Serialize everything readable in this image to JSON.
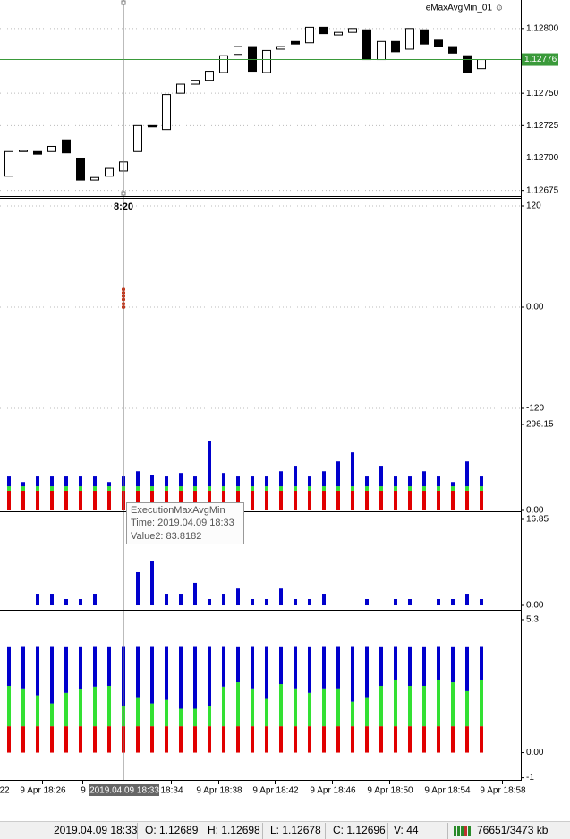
{
  "indicator_label": "eMaxAvgMin_01 ☺",
  "price_panel": {
    "ylim": [
      1.12672,
      1.12822
    ],
    "yticks": [
      {
        "value": 1.128,
        "label": "1.12800"
      },
      {
        "value": 1.1275,
        "label": "1.12750"
      },
      {
        "value": 1.12725,
        "label": "1.12725"
      },
      {
        "value": 1.127,
        "label": "1.12700"
      },
      {
        "value": 1.12675,
        "label": "1.12675"
      }
    ],
    "current_price": {
      "value": 1.12776,
      "label": "1.12776"
    },
    "open": [
      1.12686,
      1.12705,
      1.12705,
      1.12705,
      1.12714,
      1.127,
      1.12683,
      1.12686,
      1.1269,
      1.12705,
      1.12725,
      1.12722,
      1.1275,
      1.12757,
      1.1276,
      1.12766,
      1.1278,
      1.12786,
      1.12766,
      1.12784,
      1.1279,
      1.12789,
      1.12801,
      1.12795,
      1.12797,
      1.12799,
      1.12776,
      1.1279,
      1.12784,
      1.12799,
      1.12791,
      1.12786,
      1.12779,
      1.12769
    ],
    "close": [
      1.12705,
      1.12706,
      1.12703,
      1.12709,
      1.12704,
      1.12683,
      1.12685,
      1.12692,
      1.12697,
      1.12725,
      1.12724,
      1.12749,
      1.12757,
      1.1276,
      1.12767,
      1.12779,
      1.12786,
      1.12767,
      1.12783,
      1.12786,
      1.12788,
      1.12801,
      1.12796,
      1.12797,
      1.128,
      1.12776,
      1.1279,
      1.12782,
      1.128,
      1.12788,
      1.12786,
      1.12781,
      1.12766,
      1.12776
    ]
  },
  "panel2": {
    "ylim": [
      -126.4,
      128.5
    ],
    "yticks": [
      120,
      {
        "value": 0,
        "label": "0.00"
      },
      -120
    ],
    "crosshair_label": "8:20",
    "dot_index": 8,
    "dot_color": "#cc2200",
    "dots": [
      21,
      17,
      13,
      9,
      4,
      0
    ]
  },
  "panel3": {
    "ylim": [
      0,
      323.9
    ],
    "yticks": [
      296.15,
      {
        "value": 0,
        "label": "0.00"
      }
    ],
    "series": [
      {
        "color": "#e00000",
        "values": [
          68,
          68,
          68,
          68,
          68,
          68,
          68,
          68,
          68,
          68,
          68,
          68,
          68,
          68,
          68,
          68,
          68,
          68,
          68,
          68,
          68,
          68,
          68,
          68,
          68,
          68,
          68,
          68,
          68,
          68,
          68,
          68,
          68,
          68
        ]
      },
      {
        "color": "#33e033",
        "values": [
          15,
          15,
          15,
          15,
          15,
          15,
          15,
          15,
          15,
          15,
          15,
          15,
          15,
          15,
          15,
          15,
          15,
          15,
          15,
          15,
          15,
          15,
          15,
          15,
          15,
          15,
          15,
          15,
          15,
          15,
          15,
          15,
          15,
          15
        ]
      },
      {
        "color": "#0000cc",
        "values": [
          34,
          15,
          34,
          34,
          34,
          34,
          34,
          15,
          34,
          52,
          40,
          34,
          46,
          34,
          157,
          46,
          34,
          34,
          34,
          52,
          71,
          34,
          52,
          86,
          117,
          34,
          71,
          34,
          34,
          52,
          34,
          15,
          86,
          34
        ]
      }
    ]
  },
  "panel4": {
    "ylim": [
      -0.7,
      18.08
    ],
    "yticks": [
      16.85,
      {
        "value": 0,
        "label": "0.00"
      }
    ],
    "series": [
      {
        "color": "#0000cc",
        "values": [
          0,
          0,
          2.28,
          2.28,
          1.23,
          1.23,
          2.28,
          0,
          0,
          6.5,
          8.6,
          2.28,
          2.28,
          4.4,
          1.23,
          2.28,
          3.3,
          1.23,
          1.23,
          3.3,
          1.23,
          1.23,
          2.28,
          0,
          0,
          1.23,
          0,
          1.23,
          1.23,
          0,
          1.23,
          1.23,
          2.28,
          1.23
        ]
      }
    ]
  },
  "panel5": {
    "ylim": [
      -1.05,
      5.62
    ],
    "yticks": [
      5.3,
      {
        "value": 0,
        "label": "0.00"
      },
      -1
    ],
    "series": [
      {
        "color": "#e00000",
        "values": [
          1.05,
          1.05,
          1.05,
          1.05,
          1.05,
          1.05,
          1.05,
          1.05,
          1.05,
          1.05,
          1.05,
          1.05,
          1.05,
          1.05,
          1.05,
          1.05,
          1.05,
          1.05,
          1.05,
          1.05,
          1.05,
          1.05,
          1.05,
          1.05,
          1.05,
          1.05,
          1.05,
          1.05,
          1.05,
          1.05,
          1.05,
          1.05,
          1.05,
          1.05
        ]
      },
      {
        "color": "#33e033",
        "values": [
          1.61,
          1.51,
          1.23,
          0.91,
          1.33,
          1.47,
          1.58,
          1.61,
          0.81,
          1.16,
          0.91,
          1.05,
          0.7,
          0.7,
          0.81,
          1.58,
          1.75,
          1.51,
          1.09,
          1.68,
          1.51,
          1.33,
          1.51,
          1.51,
          0.98,
          1.16,
          1.61,
          1.86,
          1.61,
          1.61,
          1.86,
          1.75,
          1.4,
          1.86
        ]
      },
      {
        "color": "#0000cc",
        "values": [
          1.54,
          1.65,
          1.93,
          2.25,
          1.82,
          1.68,
          1.58,
          1.54,
          2.35,
          2.0,
          2.25,
          2.11,
          2.46,
          2.46,
          2.35,
          1.58,
          1.4,
          1.65,
          2.07,
          1.47,
          1.65,
          1.82,
          1.65,
          1.65,
          2.18,
          2.0,
          1.54,
          1.3,
          1.54,
          1.54,
          1.3,
          1.4,
          1.75,
          1.3
        ]
      }
    ]
  },
  "tooltip": {
    "title": "ExecutionMaxAvgMin",
    "time": "Time: 2019.04.09 18:33",
    "value": "Value2: 83.8182"
  },
  "x_axis": {
    "labels": [
      "22",
      "9 Apr 18:26",
      "9",
      "18:34",
      "9 Apr 18:38",
      "9 Apr 18:42",
      "9 Apr 18:46",
      "9 Apr 18:50",
      "9 Apr 18:54",
      "9 Apr 18:58"
    ],
    "highlight": "2019.04.09 18:33"
  },
  "status_bar": {
    "time": "2019.04.09 18:33",
    "open": "O: 1.12689",
    "high": "H: 1.12698",
    "low": "L: 1.12678",
    "close": "C: 1.12696",
    "volume": "V: 44",
    "traffic": "76651/3473 kb"
  }
}
